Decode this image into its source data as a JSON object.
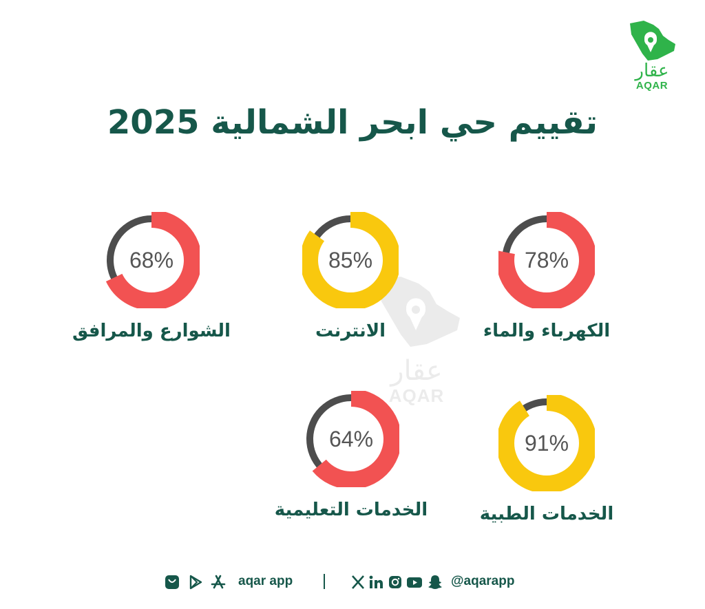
{
  "brand": {
    "name_ar": "عقار",
    "name_en": "AQAR",
    "color": "#2fb34a"
  },
  "title": "تقييم حي ابحر الشمالية 2025",
  "colors": {
    "title": "#16574a",
    "red": "#f25252",
    "yellow": "#f9c80e",
    "track": "#4d4d4d"
  },
  "metrics": [
    {
      "label": "الكهرباء والماء",
      "percent": 78,
      "percent_text": "78%",
      "color": "#f25252"
    },
    {
      "label": "الانترنت",
      "percent": 85,
      "percent_text": "85%",
      "color": "#f9c80e"
    },
    {
      "label": "الشوارع والمرافق",
      "percent": 68,
      "percent_text": "68%",
      "color": "#f25252"
    },
    {
      "label": "الخدمات الطبية",
      "percent": 91,
      "percent_text": "91%",
      "color": "#f9c80e"
    },
    {
      "label": "الخدمات التعليمية",
      "percent": 64,
      "percent_text": "64%",
      "color": "#f25252"
    }
  ],
  "footer": {
    "app_text": "aqar app",
    "handle": "@aqarapp",
    "app_icons": [
      "app-store-icon",
      "play-store-icon",
      "app-gallery-icon"
    ],
    "social_icons": [
      "x-icon",
      "linkedin-icon",
      "instagram-icon",
      "youtube-icon",
      "snapchat-icon"
    ]
  }
}
